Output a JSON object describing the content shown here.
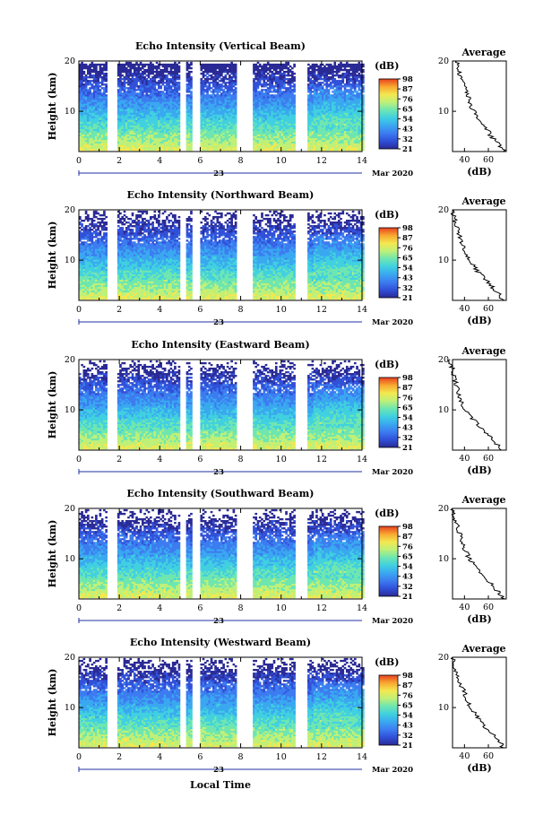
{
  "figure": {
    "xlabel": "Local Time",
    "date_day": "23",
    "date_month": "Mar 2020",
    "avg_title": "Average",
    "avg_xlabel": "(dB)",
    "cb_unit": "(dB)",
    "ylabel": "Height (km)"
  },
  "colors": {
    "colormap": [
      "#2a2a96",
      "#3050d8",
      "#3c7cf0",
      "#3aa8f0",
      "#40d0e0",
      "#6ee6b0",
      "#bff078",
      "#f4e850",
      "#f8a830",
      "#e84020"
    ],
    "average_line": "#000000",
    "date_line": "#2030a0"
  },
  "chart_data": [
    {
      "type": "heatmap",
      "title": "Echo Intensity (Vertical Beam)",
      "xlim": [
        0,
        14
      ],
      "ylim": [
        2,
        20
      ],
      "xticks": [
        "0",
        "2",
        "4",
        "6",
        "8",
        "10",
        "12",
        "14"
      ],
      "yticks": [
        "10",
        "20"
      ],
      "colorbar_ticks": [
        "21",
        "32",
        "43",
        "54",
        "65",
        "76",
        "87",
        "98"
      ],
      "data_gaps": [
        [
          1.4,
          1.9
        ],
        [
          5.0,
          5.3
        ],
        [
          5.6,
          6.0
        ],
        [
          7.8,
          8.6
        ],
        [
          10.7,
          11.3
        ]
      ],
      "average_xticks": [
        "40",
        "60"
      ],
      "average_profile": {
        "height_km": [
          2,
          3,
          4,
          5,
          6,
          7,
          8,
          9,
          10,
          11,
          12,
          13,
          14,
          15,
          16,
          17,
          18,
          19,
          20
        ],
        "intensity_db": [
          74,
          70,
          68,
          62,
          60,
          58,
          54,
          50,
          48,
          45,
          44,
          43,
          42,
          40,
          38,
          36,
          36,
          34,
          33
        ]
      }
    },
    {
      "type": "heatmap",
      "title": "Echo Intensity (Northward Beam)",
      "xlim": [
        0,
        14
      ],
      "ylim": [
        2,
        20
      ],
      "xticks": [
        "0",
        "2",
        "4",
        "6",
        "8",
        "10",
        "12",
        "14"
      ],
      "yticks": [
        "10",
        "20"
      ],
      "colorbar_ticks": [
        "21",
        "32",
        "43",
        "54",
        "65",
        "76",
        "87",
        "98"
      ],
      "data_gaps": [
        [
          1.4,
          1.9
        ],
        [
          5.0,
          5.3
        ],
        [
          5.6,
          6.0
        ],
        [
          7.8,
          8.6
        ],
        [
          10.7,
          11.3
        ]
      ],
      "average_xticks": [
        "40",
        "60"
      ],
      "average_profile": {
        "height_km": [
          2,
          3,
          4,
          5,
          6,
          7,
          8,
          9,
          10,
          11,
          12,
          13,
          14,
          15,
          16,
          17,
          18,
          19,
          20
        ],
        "intensity_db": [
          72,
          70,
          66,
          62,
          58,
          54,
          50,
          47,
          44,
          42,
          40,
          38,
          37,
          36,
          35,
          33,
          32,
          31,
          30
        ]
      }
    },
    {
      "type": "heatmap",
      "title": "Echo Intensity (Eastward Beam)",
      "xlim": [
        0,
        14
      ],
      "ylim": [
        2,
        20
      ],
      "xticks": [
        "0",
        "2",
        "4",
        "6",
        "8",
        "10",
        "12",
        "14"
      ],
      "yticks": [
        "10",
        "20"
      ],
      "colorbar_ticks": [
        "21",
        "32",
        "43",
        "54",
        "65",
        "76",
        "87",
        "98"
      ],
      "data_gaps": [
        [
          1.4,
          1.9
        ],
        [
          5.0,
          5.3
        ],
        [
          5.6,
          6.0
        ],
        [
          7.8,
          8.6
        ],
        [
          10.7,
          11.3
        ]
      ],
      "average_xticks": [
        "40",
        "60"
      ],
      "average_profile": {
        "height_km": [
          2,
          3,
          4,
          5,
          6,
          7,
          8,
          9,
          10,
          11,
          12,
          13,
          14,
          15,
          16,
          17,
          18,
          19,
          20
        ],
        "intensity_db": [
          72,
          68,
          64,
          60,
          56,
          52,
          48,
          44,
          40,
          38,
          37,
          36,
          34,
          33,
          32,
          31,
          30,
          29,
          28
        ]
      }
    },
    {
      "type": "heatmap",
      "title": "Echo Intensity (Southward Beam)",
      "xlim": [
        0,
        14
      ],
      "ylim": [
        2,
        20
      ],
      "xticks": [
        "0",
        "2",
        "4",
        "6",
        "8",
        "10",
        "12",
        "14"
      ],
      "yticks": [
        "10",
        "20"
      ],
      "colorbar_ticks": [
        "21",
        "32",
        "43",
        "54",
        "65",
        "76",
        "87",
        "98"
      ],
      "data_gaps": [
        [
          1.4,
          1.9
        ],
        [
          5.0,
          5.3
        ],
        [
          5.6,
          6.0
        ],
        [
          7.8,
          8.6
        ],
        [
          10.7,
          11.3
        ]
      ],
      "average_xticks": [
        "40",
        "60"
      ],
      "average_profile": {
        "height_km": [
          2,
          3,
          4,
          5,
          6,
          7,
          8,
          9,
          10,
          11,
          12,
          13,
          14,
          15,
          16,
          17,
          18,
          19,
          20
        ],
        "intensity_db": [
          72,
          70,
          66,
          62,
          58,
          54,
          50,
          47,
          44,
          42,
          40,
          38,
          37,
          36,
          35,
          33,
          32,
          31,
          30
        ]
      }
    },
    {
      "type": "heatmap",
      "title": "Echo Intensity (Westward Beam)",
      "xlim": [
        0,
        14
      ],
      "ylim": [
        2,
        20
      ],
      "xticks": [
        "0",
        "2",
        "4",
        "6",
        "8",
        "10",
        "12",
        "14"
      ],
      "yticks": [
        "10",
        "20"
      ],
      "colorbar_ticks": [
        "21",
        "32",
        "43",
        "54",
        "65",
        "76",
        "87",
        "98"
      ],
      "data_gaps": [
        [
          1.4,
          1.9
        ],
        [
          5.0,
          5.3
        ],
        [
          5.6,
          6.0
        ],
        [
          7.8,
          8.6
        ],
        [
          10.7,
          11.3
        ]
      ],
      "average_xticks": [
        "40",
        "60"
      ],
      "average_profile": {
        "height_km": [
          2,
          3,
          4,
          5,
          6,
          7,
          8,
          9,
          10,
          11,
          12,
          13,
          14,
          15,
          16,
          17,
          18,
          19,
          20
        ],
        "intensity_db": [
          72,
          70,
          66,
          62,
          58,
          55,
          51,
          48,
          45,
          43,
          41,
          40,
          38,
          36,
          35,
          33,
          32,
          31,
          30
        ]
      }
    }
  ]
}
